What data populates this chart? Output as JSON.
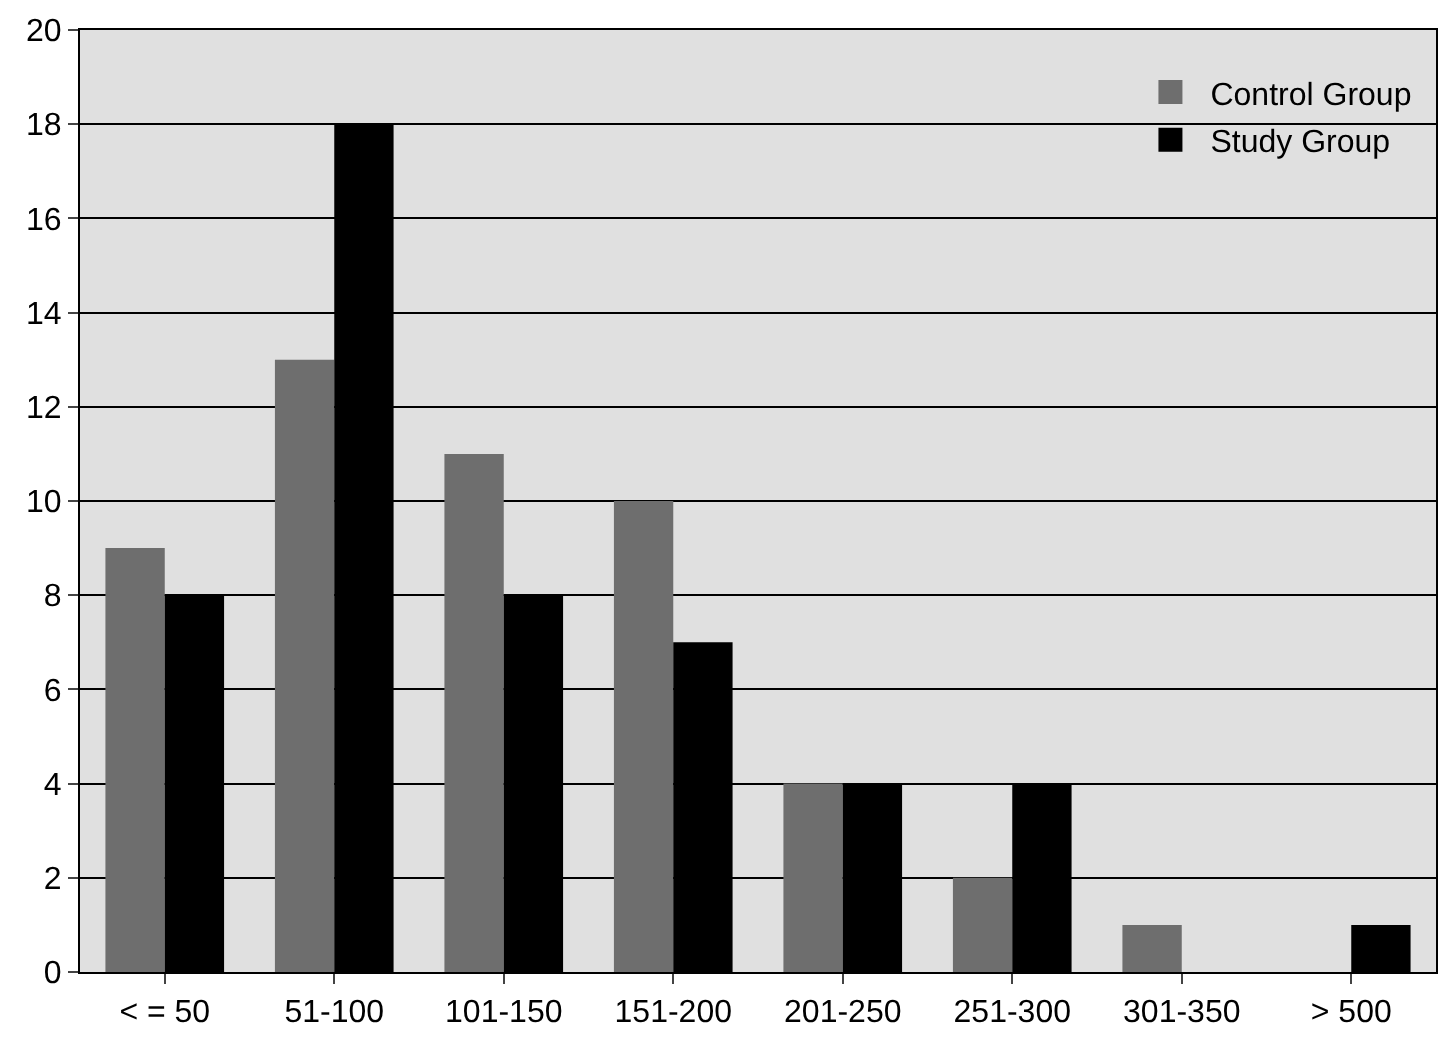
{
  "chart_data": {
    "type": "bar",
    "categories": [
      "< = 50",
      "51-100",
      "101-150",
      "151-200",
      "201-250",
      "251-300",
      "301-350",
      "> 500"
    ],
    "series": [
      {
        "name": "Control Group",
        "color": "#6e6e6e",
        "values": [
          9,
          13,
          11,
          10,
          4,
          2,
          1,
          0
        ]
      },
      {
        "name": "Study Group",
        "color": "#000000",
        "values": [
          8,
          18,
          8,
          7,
          4,
          4,
          0,
          1
        ]
      }
    ],
    "ylim": [
      0,
      20
    ],
    "yticks": [
      0,
      2,
      4,
      6,
      8,
      10,
      12,
      14,
      16,
      18,
      20
    ],
    "grid": "y",
    "legend": "top right"
  }
}
